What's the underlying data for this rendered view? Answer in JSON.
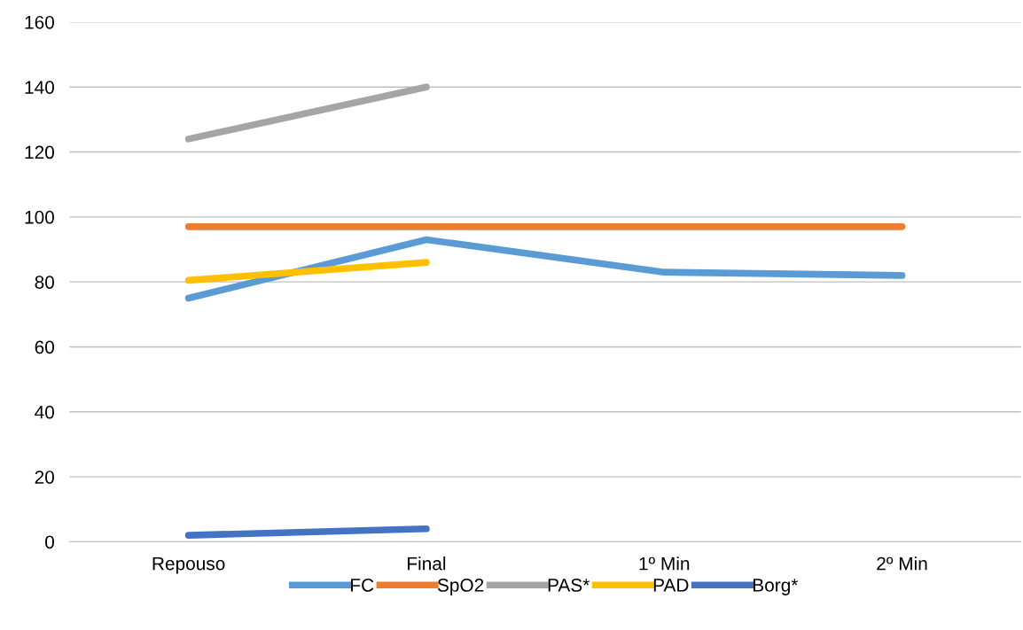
{
  "chart_data": {
    "type": "line",
    "categories": [
      "Repouso",
      "Final",
      "1º Min",
      "2º Min"
    ],
    "series": [
      {
        "name": "FC",
        "color": "#5b9bd5",
        "values": [
          75,
          93,
          83,
          82
        ]
      },
      {
        "name": "SpO2",
        "color": "#ed7d31",
        "values": [
          97,
          97,
          97,
          97
        ]
      },
      {
        "name": "PAS*",
        "color": "#a5a5a5",
        "values": [
          124,
          140,
          null,
          null
        ]
      },
      {
        "name": "PAD",
        "color": "#ffc000",
        "values": [
          80.5,
          86,
          null,
          null
        ]
      },
      {
        "name": "Borg*",
        "color": "#4472c4",
        "values": [
          2,
          4,
          null,
          null
        ]
      }
    ],
    "ylim": [
      0,
      160
    ],
    "yticks": [
      0,
      20,
      40,
      60,
      80,
      100,
      120,
      140,
      160
    ],
    "grid": "y",
    "legend": "bottom",
    "marker": "none",
    "line_style": "solid"
  }
}
